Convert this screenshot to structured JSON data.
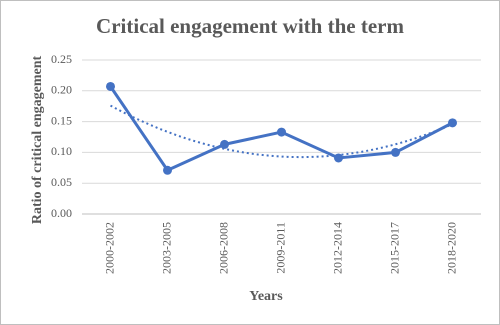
{
  "chart_data": {
    "type": "line",
    "title": "Critical engagement with the term",
    "x_label": "Years",
    "y_label": "Ratio of critical engagement",
    "categories": [
      "2000-2002",
      "2003-2005",
      "2006-2008",
      "2009-2011",
      "2012-2014",
      "2015-2017",
      "2018-2020"
    ],
    "series": [
      {
        "color": "#4472c4",
        "values": [
          0.207,
          0.071,
          0.113,
          0.133,
          0.091,
          0.1,
          0.148
        ]
      }
    ],
    "trendline": "quadratic",
    "ylim": [
      0,
      0.25
    ],
    "yticks": [
      {
        "value": 0,
        "label": "0.00"
      },
      0.05,
      {
        "value": 0.1,
        "label": "0.10"
      },
      0.15,
      {
        "value": 0.2,
        "label": "0.20"
      },
      0.25
    ],
    "grid": true
  }
}
